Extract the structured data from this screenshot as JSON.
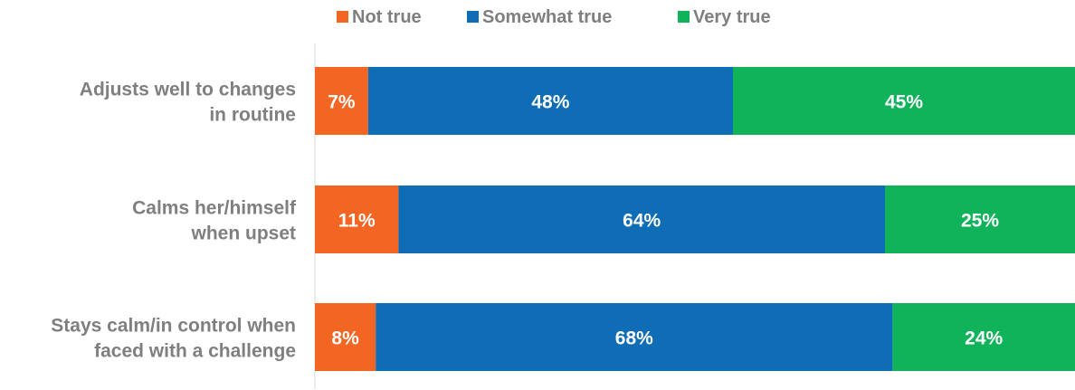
{
  "chart_data": {
    "type": "bar",
    "orientation": "horizontal",
    "stacked": true,
    "normalized": true,
    "categories": [
      [
        "Adjusts well to changes",
        "in routine"
      ],
      [
        "Calms her/himself",
        "when upset"
      ],
      [
        "Stays calm/in control when",
        "faced with a challenge"
      ]
    ],
    "series": [
      {
        "name": "Not true",
        "color": "#f26522",
        "values": [
          7,
          11,
          8
        ],
        "labels": [
          "7%",
          "11%",
          "8%"
        ]
      },
      {
        "name": "Somewhat true",
        "color": "#0e6db5",
        "values": [
          48,
          64,
          68
        ],
        "labels": [
          "48%",
          "64%",
          "68%"
        ]
      },
      {
        "name": "Very true",
        "color": "#11b35a",
        "values": [
          45,
          25,
          24
        ],
        "labels": [
          "45%",
          "25%",
          "24%"
        ]
      }
    ],
    "xlim": [
      0,
      100
    ],
    "unit": "%",
    "legend": "top-center",
    "grid": false
  }
}
